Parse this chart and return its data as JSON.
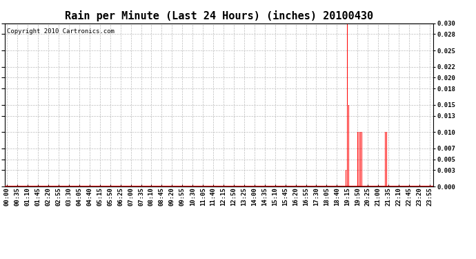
{
  "title": "Rain per Minute (Last 24 Hours) (inches) 20100430",
  "copyright_text": "Copyright 2010 Cartronics.com",
  "ylim": [
    0.0,
    0.03
  ],
  "yticks": [
    0.0,
    0.003,
    0.005,
    0.007,
    0.01,
    0.013,
    0.015,
    0.018,
    0.02,
    0.022,
    0.025,
    0.028,
    0.03
  ],
  "bar_color": "#ff0000",
  "bg_color": "#ffffff",
  "grid_color": "#bbbbbb",
  "baseline_color": "#ff0000",
  "title_fontsize": 11,
  "tick_fontsize": 6.5,
  "copyright_fontsize": 6.5,
  "n_minutes": 1440,
  "spike_data": {
    "19:10": 0.003,
    "19:15": 0.03,
    "19:20": 0.015,
    "19:50": 0.01,
    "19:55": 0.01,
    "20:00": 0.01,
    "20:05": 0.01,
    "21:25": 0.01,
    "21:30": 0.01
  },
  "xtick_step": 35,
  "bar_width": 2.0
}
